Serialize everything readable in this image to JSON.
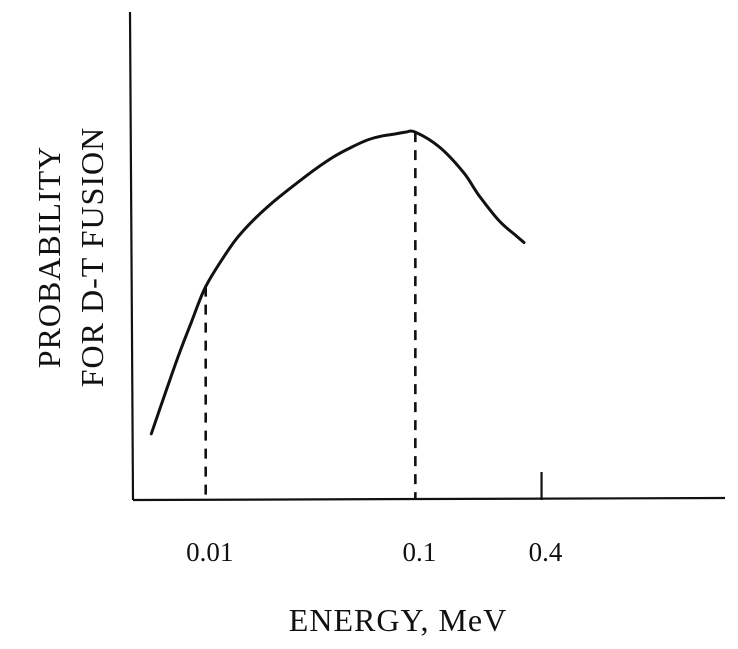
{
  "chart_data": {
    "type": "line",
    "xlabel": "ENERGY, MeV",
    "ylabel_lines": [
      "PROBABILITY",
      "FOR D-T FUSION"
    ],
    "x_scale": "log",
    "x_ticks": [
      {
        "value": 0.01,
        "label": "0.01"
      },
      {
        "value": 0.1,
        "label": "0.1"
      },
      {
        "value": 0.4,
        "label": "0.4"
      }
    ],
    "xlim": [
      0.0045,
      3
    ],
    "ylim": [
      0,
      1.12
    ],
    "y_ticks": [],
    "series": [
      {
        "x": [
          0.0055,
          0.0065,
          0.0075,
          0.0085,
          0.01,
          0.0125,
          0.015,
          0.02,
          0.03,
          0.04,
          0.05,
          0.06,
          0.07,
          0.08,
          0.09,
          0.1,
          0.13,
          0.17,
          0.2,
          0.25,
          0.3,
          0.33
        ],
        "y": [
          0.18,
          0.3,
          0.4,
          0.48,
          0.58,
          0.67,
          0.73,
          0.8,
          0.88,
          0.93,
          0.96,
          0.98,
          0.99,
          0.995,
          1.0,
          1.0,
          0.96,
          0.89,
          0.83,
          0.76,
          0.72,
          0.7
        ]
      }
    ],
    "dashed_markers": [
      {
        "x": 0.01,
        "y": 0.58
      },
      {
        "x": 0.1,
        "y": 1.0
      }
    ]
  }
}
